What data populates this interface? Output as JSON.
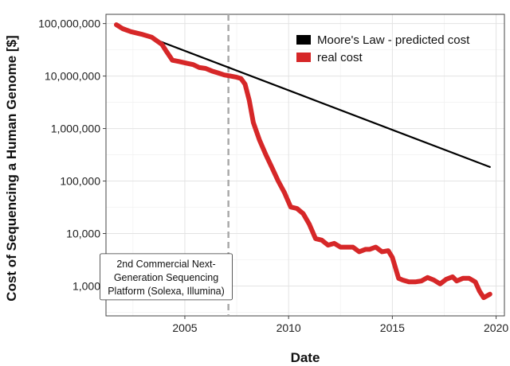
{
  "chart_data": {
    "type": "line",
    "title": "",
    "xlabel": "Date",
    "ylabel": "Cost of Sequencing a Human Genome [$]",
    "y_scale": "log",
    "xlim": [
      2001.2,
      2020.4
    ],
    "ylim": [
      270,
      150000000
    ],
    "x_ticks": [
      2005,
      2010,
      2015,
      2020
    ],
    "x_tick_labels": [
      "2005",
      "2010",
      "2015",
      "2020"
    ],
    "y_ticks": [
      1000,
      10000,
      100000,
      1000000,
      10000000,
      100000000
    ],
    "y_tick_labels": [
      "1,000",
      "10,000",
      "100,000",
      "1,000,000",
      "10,000,000",
      "100,000,000"
    ],
    "grid": true,
    "legend_position": "top-right",
    "series": [
      {
        "name": "Moore's Law - predicted cost",
        "color": "#000000",
        "x": [
          2001.7,
          2019.7
        ],
        "y": [
          95000000,
          185000
        ]
      },
      {
        "name": "real cost",
        "color": "#d62728",
        "x": [
          2001.7,
          2002.0,
          2002.4,
          2002.9,
          2003.4,
          2003.9,
          2004.1,
          2004.4,
          2004.7,
          2005.1,
          2005.4,
          2005.7,
          2006.0,
          2006.3,
          2006.6,
          2006.9,
          2007.2,
          2007.5,
          2007.7,
          2007.9,
          2008.1,
          2008.3,
          2008.6,
          2008.9,
          2009.2,
          2009.5,
          2009.8,
          2010.1,
          2010.4,
          2010.7,
          2011.0,
          2011.3,
          2011.6,
          2011.9,
          2012.2,
          2012.5,
          2012.8,
          2013.1,
          2013.4,
          2013.7,
          2013.9,
          2014.2,
          2014.5,
          2014.8,
          2015.0,
          2015.3,
          2015.5,
          2015.8,
          2016.1,
          2016.4,
          2016.7,
          2017.0,
          2017.3,
          2017.6,
          2017.9,
          2018.1,
          2018.4,
          2018.7,
          2019.0,
          2019.2,
          2019.4,
          2019.7
        ],
        "y": [
          95000000,
          80000000,
          70000000,
          63000000,
          55000000,
          40000000,
          30000000,
          20000000,
          19000000,
          17500000,
          16500000,
          14500000,
          14000000,
          12500000,
          11500000,
          10500000,
          10000000,
          9500000,
          9000000,
          7000000,
          3500000,
          1300000,
          600000,
          320000,
          180000,
          100000,
          60000,
          32000,
          30000,
          24000,
          15000,
          8000,
          7500,
          6000,
          6500,
          5500,
          5500,
          5500,
          4500,
          5000,
          5000,
          5500,
          4500,
          4700,
          3500,
          1400,
          1300,
          1200,
          1200,
          1250,
          1450,
          1300,
          1100,
          1350,
          1500,
          1250,
          1400,
          1400,
          1200,
          800,
          600,
          700
        ]
      }
    ],
    "annotations": [
      {
        "type": "vline",
        "x": 2007.1,
        "style": "dashed",
        "color": "#aaaaaa"
      },
      {
        "type": "textbox",
        "lines": [
          "2nd Commercial Next-",
          "Generation Sequencing",
          "Platform (Solexa, Illumina)"
        ],
        "anchor_x": 2004.1,
        "anchor_y": 1500
      }
    ]
  }
}
